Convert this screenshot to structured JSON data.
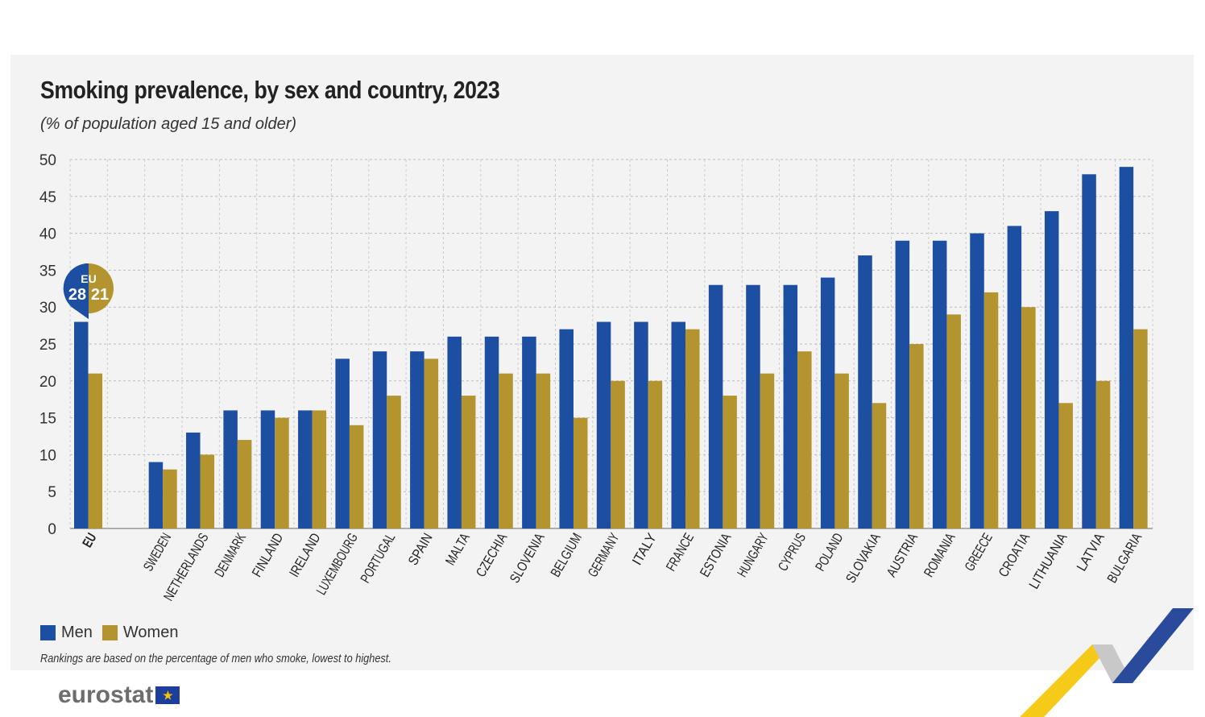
{
  "header": {
    "title": "Smoking prevalence, by sex and country, 2023",
    "subtitle": "(% of population aged 15 and older)"
  },
  "legend": {
    "men": "Men",
    "women": "Women"
  },
  "note": "Rankings are based on the percentage of men who smoke, lowest to highest.",
  "logo": {
    "text": "eurostat",
    "flag": "EU flag"
  },
  "colors": {
    "men": "#1c4ea2",
    "women": "#b3942f"
  },
  "chart_data": {
    "type": "bar",
    "title": "Smoking prevalence, by sex and country, 2023",
    "ylabel": "% of population aged 15 and older",
    "ylim": [
      0,
      50
    ],
    "yticks": [
      0,
      5,
      10,
      15,
      20,
      25,
      30,
      35,
      40,
      45,
      50
    ],
    "grid": true,
    "legend_placement": "bottom-left",
    "categories": [
      "EU",
      "",
      "SWEDEN",
      "NETHERLANDS",
      "DENMARK",
      "FINLAND",
      "IRELAND",
      "LUXEMBOURG",
      "PORTUGAL",
      "SPAIN",
      "MALTA",
      "CZECHIA",
      "SLOVENIA",
      "BELGIUM",
      "GERMANY",
      "ITALY",
      "FRANCE",
      "ESTONIA",
      "HUNGARY",
      "CYPRUS",
      "POLAND",
      "SLOVAKIA",
      "AUSTRIA",
      "ROMANIA",
      "GREECE",
      "CROATIA",
      "LITHUANIA",
      "LATVIA",
      "BULGARIA"
    ],
    "series": [
      {
        "name": "Men",
        "values": [
          28,
          null,
          9,
          13,
          16,
          16,
          16,
          23,
          24,
          24,
          26,
          26,
          26,
          27,
          28,
          28,
          28,
          33,
          33,
          33,
          34,
          37,
          39,
          39,
          40,
          41,
          43,
          48,
          49
        ]
      },
      {
        "name": "Women",
        "values": [
          21,
          null,
          8,
          10,
          12,
          15,
          16,
          14,
          18,
          23,
          18,
          21,
          21,
          15,
          20,
          20,
          27,
          18,
          21,
          24,
          21,
          17,
          25,
          29,
          32,
          30,
          17,
          20,
          27
        ]
      }
    ],
    "annotation": {
      "label": "EU",
      "men": "28",
      "women": "21"
    }
  }
}
